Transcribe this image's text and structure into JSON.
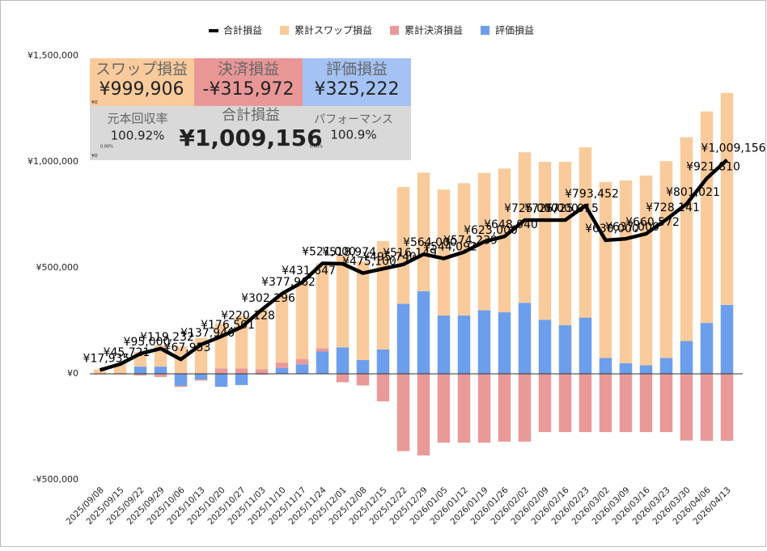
{
  "chart_data": {
    "type": "bar",
    "categories": [
      "2025/09/08",
      "2025/09/15",
      "2025/09/22",
      "2025/09/29",
      "2025/10/06",
      "2025/10/13",
      "2025/10/20",
      "2025/10/27",
      "2025/11/03",
      "2025/11/10",
      "2025/11/17",
      "2025/11/24",
      "2025/12/01",
      "2025/12/08",
      "2025/12/15",
      "2025/12/22",
      "2025/12/29",
      "2026/01/05",
      "2026/01/12",
      "2026/01/19",
      "2026/01/26",
      "2026/02/02",
      "2026/02/09",
      "2026/02/16",
      "2026/02/23",
      "2026/03/02",
      "2026/03/09",
      "2026/03/16",
      "2026/03/23",
      "2026/03/30",
      "2026/04/06",
      "2026/04/13"
    ],
    "series": [
      {
        "name": "合計損益",
        "type": "line",
        "color": "#000000",
        "values": [
          17935,
          45721,
          95000,
          119232,
          67953,
          137946,
          176501,
          220128,
          302296,
          377962,
          431647,
          521000,
          518974,
          475100,
          495740,
          516149,
          564000,
          544092,
          574239,
          623000,
          648040,
          725000,
          725000,
          725015,
          793452,
          630000,
          637000,
          660572,
          728141,
          801021,
          921810,
          1009156
        ],
        "value_labels": [
          "¥17,935",
          "¥45,721",
          "¥95,000",
          "¥119,232",
          "¥67,953",
          "¥137,946",
          "¥176,501",
          "¥220,128",
          "¥302,296",
          "¥377,962",
          "¥431,647",
          "¥521,000",
          "¥518,974",
          "¥475,100",
          "¥495,740",
          "¥516,149",
          "¥564,000",
          "¥544,092",
          "¥574,239",
          "¥623,000",
          "¥648,040",
          "¥725,000",
          "¥725,000",
          "¥725,015",
          "¥793,452",
          "¥630,000",
          "¥637,000",
          "¥660,572",
          "¥728,141",
          "¥801,021",
          "¥921,810",
          "¥1,009,156"
        ]
      },
      {
        "name": "累計スワップ損益",
        "type": "bar",
        "color": "#f9cb9c",
        "values": [
          19935,
          46721,
          69000,
          100232,
          129953,
          169946,
          212501,
          248128,
          283296,
          324962,
          361647,
          401000,
          433974,
          465100,
          510740,
          551149,
          559000,
          594092,
          624239,
          648000,
          678040,
          710000,
          745000,
          770015,
          803452,
          830000,
          862000,
          895572,
          928141,
          961021,
          997810,
          999906
        ]
      },
      {
        "name": "累計決済損益",
        "type": "bar",
        "color": "#ea9999",
        "values": [
          -3000,
          -3000,
          -8000,
          -15000,
          -5000,
          -5000,
          25000,
          25000,
          22000,
          25000,
          25000,
          15000,
          -40000,
          -55000,
          -130000,
          -365000,
          -385000,
          -325000,
          -325000,
          -325000,
          -320000,
          -320000,
          -275000,
          -275000,
          -275000,
          -275000,
          -275000,
          -275000,
          -275000,
          -315000,
          -316000,
          -315972
        ]
      },
      {
        "name": "評価損益",
        "type": "bar",
        "color": "#6d9eeb",
        "values": [
          1000,
          2000,
          34000,
          34000,
          -57000,
          -27000,
          -61000,
          -53000,
          -3000,
          28000,
          45000,
          105000,
          125000,
          65000,
          115000,
          330000,
          390000,
          275000,
          275000,
          300000,
          290000,
          335000,
          255000,
          230000,
          265000,
          75000,
          50000,
          40000,
          75000,
          155000,
          240000,
          325222
        ]
      }
    ],
    "ylim": [
      -500000,
      1500000
    ],
    "yticks": [
      {
        "value": -500000,
        "label": "-¥500,000"
      },
      {
        "value": 0,
        "label": "¥0"
      },
      {
        "value": 500000,
        "label": "¥500,000"
      },
      {
        "value": 1000000,
        "label": "¥1,000,000"
      },
      {
        "value": 1500000,
        "label": "¥1,500,000"
      }
    ],
    "grid": false,
    "legend": "top"
  },
  "summary": {
    "top": [
      {
        "label": "スワップ損益",
        "value": "¥999,906",
        "color": "#f9cb9c"
      },
      {
        "label": "決済損益",
        "value": "-¥315,972",
        "color": "#e89796"
      },
      {
        "label": "評価損益",
        "value": "¥325,222",
        "color": "#a4c2f4"
      }
    ],
    "recovery": {
      "label": "元本回収率",
      "value": "100.92%"
    },
    "total": {
      "label": "合計損益",
      "value": "¥1,009,156"
    },
    "performance": {
      "label": "パフォーマンス",
      "value": "100.9%"
    },
    "small": [
      "¥0",
      "¥0",
      "0.00%",
      "0.00%"
    ]
  }
}
